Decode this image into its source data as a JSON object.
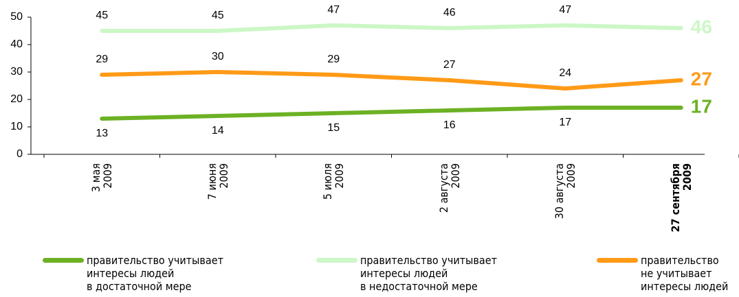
{
  "chart_data": {
    "type": "line",
    "categories": [
      "3 мая\n2009",
      "7 июня\n2009",
      "5 июля\n2009",
      "2 августа\n2009",
      "30 августа\n2009",
      "27 сентября\n2009"
    ],
    "series": [
      {
        "name": "правительство учитывает\nинтересы людей\nв достаточной мере",
        "color": "#6cb124",
        "values": [
          13,
          14,
          15,
          16,
          17,
          17
        ]
      },
      {
        "name": "правительство учитывает\nинтересы людей\nв недостаточной мере",
        "color": "#ccf7c6",
        "values": [
          45,
          45,
          47,
          46,
          47,
          46
        ]
      },
      {
        "name": "правительство\nне учитывает\nинтересы людей",
        "color": "#ff9a17",
        "values": [
          29,
          30,
          29,
          27,
          24,
          27
        ]
      }
    ],
    "ylim": [
      0,
      50
    ],
    "yticks": [
      0,
      10,
      20,
      30,
      40,
      50
    ]
  }
}
